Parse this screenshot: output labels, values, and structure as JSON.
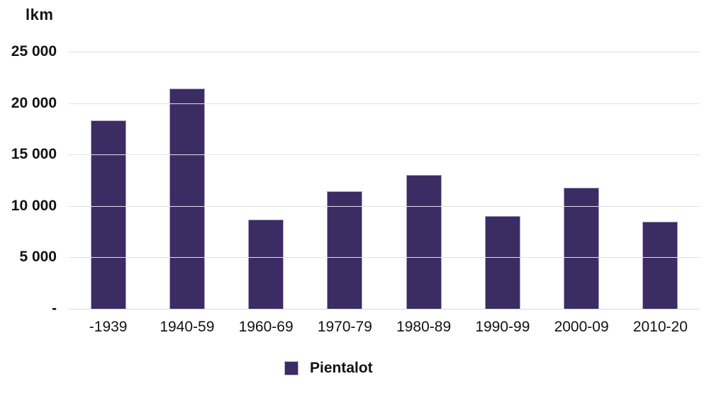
{
  "chart_data": {
    "type": "bar",
    "title": "lkm",
    "categories": [
      "-1939",
      "1940-59",
      "1960-69",
      "1970-79",
      "1980-89",
      "1990-99",
      "2000-09",
      "2010-20"
    ],
    "series": [
      {
        "name": "Pientalot",
        "values": [
          18300,
          21450,
          8650,
          11400,
          13000,
          9000,
          11750,
          8450
        ]
      }
    ],
    "xlabel": "",
    "ylabel": "lkm",
    "ylim": [
      0,
      25000
    ],
    "ytick_interval": 5000,
    "ytick_labels_bottom_to_top": [
      "-",
      "5 000",
      "10 000",
      "15 000",
      "20 000",
      "25 000"
    ],
    "grid": true,
    "legend_position": "bottom",
    "colors": {
      "bar": "#3b2c63",
      "gridline": "#e1e1e7",
      "text": "#121212",
      "background": "#ffffff"
    }
  }
}
